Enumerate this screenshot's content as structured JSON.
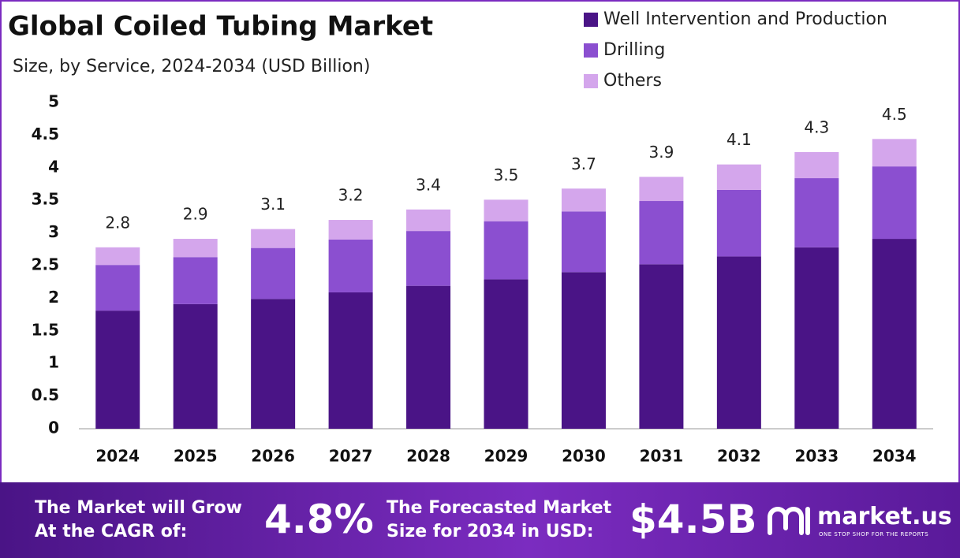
{
  "chart_data": {
    "type": "stacked_bar",
    "title": "Global Coiled Tubing Market",
    "subtitle": "Size, by Service, 2024-2034 (USD Billion)",
    "categories": [
      "2024",
      "2025",
      "2026",
      "2027",
      "2028",
      "2029",
      "2030",
      "2031",
      "2032",
      "2033",
      "2034"
    ],
    "series": [
      {
        "name": "Well Intervention and Production",
        "color": "#4a1486",
        "values": [
          1.81,
          1.91,
          1.99,
          2.09,
          2.19,
          2.29,
          2.4,
          2.52,
          2.64,
          2.78,
          2.91
        ]
      },
      {
        "name": "Drilling",
        "color": "#8b4fd0",
        "values": [
          0.7,
          0.72,
          0.78,
          0.81,
          0.84,
          0.89,
          0.93,
          0.97,
          1.02,
          1.06,
          1.11
        ]
      },
      {
        "name": "Others",
        "color": "#d4a6ec",
        "values": [
          0.27,
          0.28,
          0.29,
          0.3,
          0.33,
          0.33,
          0.35,
          0.37,
          0.39,
          0.4,
          0.42
        ]
      }
    ],
    "totals": [
      2.8,
      2.9,
      3.1,
      3.2,
      3.4,
      3.5,
      3.7,
      3.9,
      4.1,
      4.3,
      4.5
    ],
    "ylim": [
      0,
      5
    ],
    "yticks": [
      0,
      0.5,
      1,
      1.5,
      2,
      2.5,
      3,
      3.5,
      4,
      4.5,
      5
    ],
    "legend": "top-right"
  },
  "footer": {
    "cagr_label": [
      "The Market will Grow",
      "At the CAGR of:"
    ],
    "cagr": "4.8%",
    "forecast_label": [
      "The Forecasted Market",
      "Size for 2034 in USD:"
    ],
    "forecast": "$4.5B",
    "brand": "market.us",
    "tagline": "ONE STOP SHOP FOR THE REPORTS"
  }
}
